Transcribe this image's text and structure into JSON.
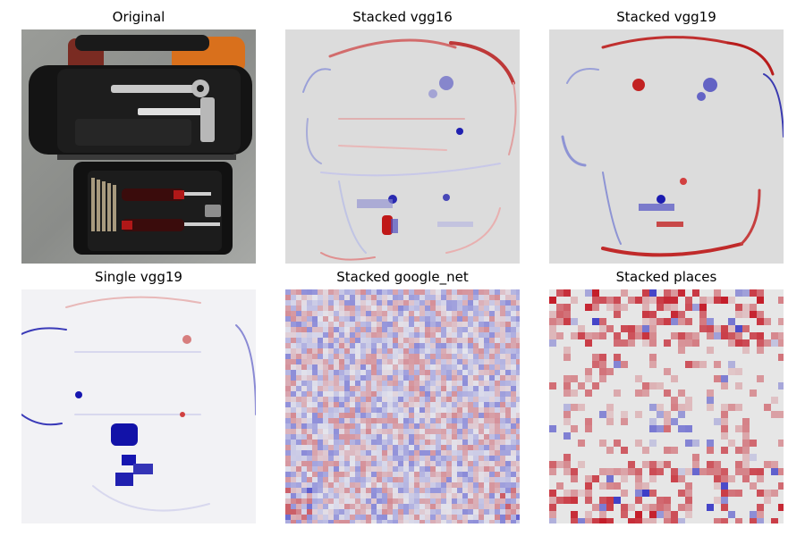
{
  "panels": [
    {
      "title": "Original"
    },
    {
      "title": "Stacked vgg16"
    },
    {
      "title": "Stacked vgg19"
    },
    {
      "title": "Single vgg19"
    },
    {
      "title": "Stacked google_net"
    },
    {
      "title": "Stacked places"
    }
  ],
  "colors": {
    "background": "#ffffff",
    "heatmap_neutral": "#dcdcdc",
    "heatmap_positive": "#c0001a",
    "heatmap_negative": "#1a1acc"
  }
}
